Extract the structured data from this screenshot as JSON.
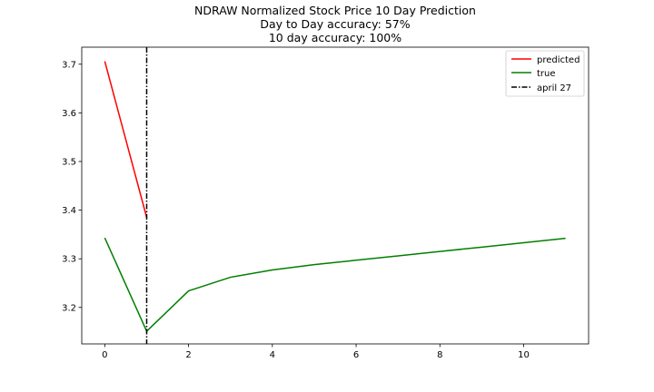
{
  "chart_data": {
    "type": "line",
    "title_lines": [
      "NDRAW Normalized Stock Price 10 Day Prediction",
      "Day to Day accuracy: 57%",
      "10 day accuracy: 100%"
    ],
    "xlabel": "",
    "ylabel": "",
    "xlim": [
      -0.55,
      11.55
    ],
    "ylim": [
      3.125,
      3.735
    ],
    "x_ticks": [
      0,
      2,
      4,
      6,
      8,
      10
    ],
    "y_ticks": [
      3.2,
      3.3,
      3.4,
      3.5,
      3.6,
      3.7
    ],
    "grid": false,
    "legend_position": "top-right",
    "series": [
      {
        "name": "predicted",
        "color": "#ff0000",
        "x": [
          0,
          1
        ],
        "y": [
          3.706,
          3.385
        ]
      },
      {
        "name": "true",
        "color": "#008000",
        "x": [
          0,
          1,
          2,
          3,
          4,
          5,
          6,
          7,
          8,
          9,
          10,
          11
        ],
        "y": [
          3.343,
          3.151,
          3.234,
          3.262,
          3.277,
          3.288,
          3.297,
          3.306,
          3.315,
          3.324,
          3.333,
          3.342
        ]
      }
    ],
    "vertical_line": {
      "name": "april 27",
      "x": 1,
      "color": "#000000",
      "style": "dashdot"
    }
  }
}
